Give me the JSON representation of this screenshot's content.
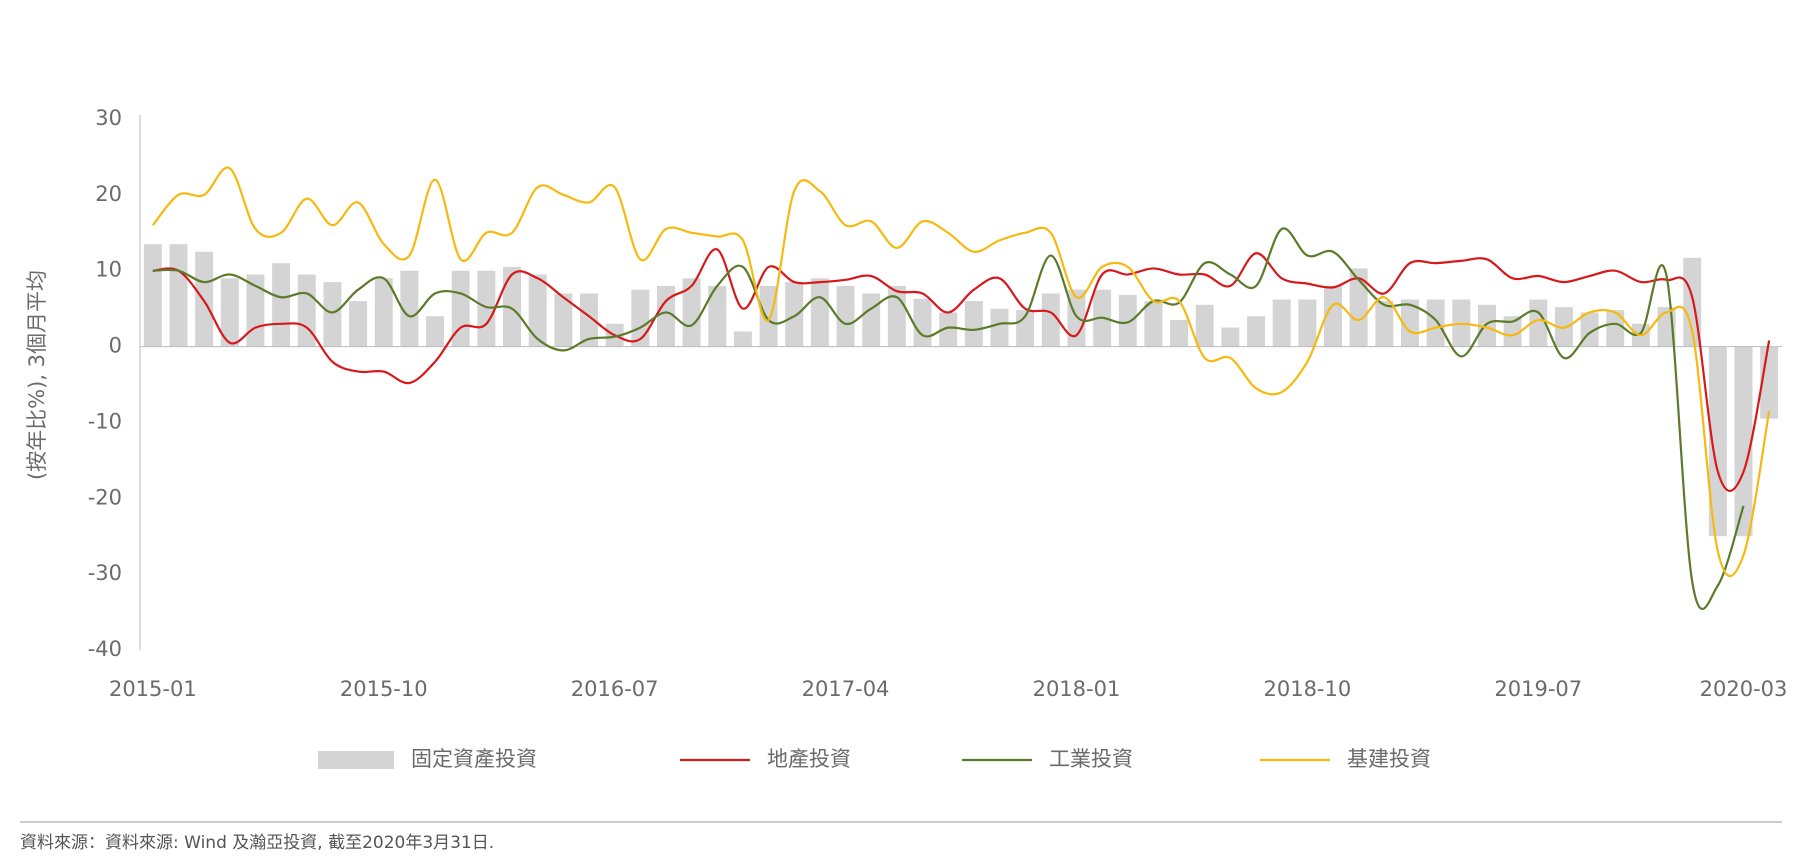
{
  "chart_data": {
    "type": "bar-line",
    "y_label": "(按年比%), 3個月平均",
    "source": "資料來源：資料來源: Wind 及瀚亞投資, 截至2020年3月31日.",
    "categories": [
      "2015-01",
      null,
      null,
      null,
      null,
      null,
      null,
      null,
      null,
      "2015-10",
      null,
      null,
      null,
      null,
      null,
      null,
      null,
      null,
      "2016-07",
      null,
      null,
      null,
      null,
      null,
      null,
      null,
      null,
      "2017-04",
      null,
      null,
      null,
      null,
      null,
      null,
      null,
      null,
      "2018-01",
      null,
      null,
      null,
      null,
      null,
      null,
      null,
      null,
      "2018-10",
      null,
      null,
      null,
      null,
      null,
      null,
      null,
      null,
      "2019-07",
      null,
      null,
      null,
      null,
      null,
      null,
      null,
      "2020-03",
      null
    ],
    "ylim": [
      -40,
      30
    ],
    "yticks": [
      -40,
      -30,
      -20,
      -10,
      0,
      10,
      20,
      30
    ],
    "series": [
      {
        "name": "固定資產投資",
        "kind": "bar",
        "color": "#d4d4d4",
        "values": [
          13.5,
          13.5,
          12.5,
          9,
          9.5,
          11,
          9.5,
          8.5,
          6,
          9,
          10,
          4,
          10,
          10,
          10.5,
          9.5,
          7,
          7,
          3,
          7.5,
          8,
          9,
          8,
          2,
          8,
          8.5,
          9,
          8,
          7,
          8,
          6.3,
          4.5,
          6,
          5,
          4.8,
          7,
          7.5,
          7.5,
          6.8,
          6,
          3.5,
          5.5,
          2.5,
          4,
          6.2,
          6.2,
          8,
          10.3,
          6,
          6.2,
          6.2,
          6.2,
          5.5,
          4,
          6.2,
          5.2,
          4.5,
          4.8,
          3,
          5.2,
          11.7,
          -25,
          -25,
          -9.5
        ]
      },
      {
        "name": "地產投資",
        "kind": "line",
        "color": "#d7191c",
        "values": [
          10,
          10,
          6,
          0.5,
          2.5,
          3,
          2.5,
          -2,
          -3.3,
          -3.3,
          -4.8,
          -2,
          2.5,
          3,
          9.5,
          9,
          6.5,
          4,
          1.5,
          1,
          6,
          8,
          12.8,
          5,
          10.5,
          8.5,
          8.5,
          8.8,
          9.3,
          7.3,
          7,
          4.5,
          7.5,
          9,
          5,
          4.5,
          1.5,
          9.5,
          9.5,
          10.3,
          9.5,
          9.5,
          8,
          12.3,
          9,
          8.3,
          7.8,
          9,
          7,
          11,
          11,
          11.3,
          11.5,
          9,
          9.3,
          8.5,
          9.3,
          10,
          8.5,
          8.8,
          6.5,
          -16.5,
          -16.5,
          0.8
        ]
      },
      {
        "name": "工業投資",
        "kind": "line",
        "color": "#5b7b2b",
        "values": [
          10,
          10,
          8.5,
          9.5,
          8,
          6.5,
          7,
          4.5,
          7.5,
          9,
          4,
          7,
          7,
          5.2,
          5,
          1,
          -0.5,
          1,
          1.3,
          2.5,
          4.5,
          2.8,
          8,
          10.5,
          3.5,
          4,
          6.5,
          3,
          5,
          6.5,
          1.5,
          2.5,
          2.2,
          3,
          4,
          12,
          4,
          3.8,
          3.2,
          6,
          5.8,
          11,
          9.5,
          8,
          15.5,
          12,
          12.5,
          8.8,
          5.5,
          5.5,
          3.5,
          -1.3,
          3,
          3.3,
          4.5,
          -1.5,
          1.8,
          3,
          1.8,
          9.3,
          -31,
          -31.5,
          -21,
          null
        ]
      },
      {
        "name": "基建投資",
        "kind": "line",
        "color": "#f6b90f",
        "values": [
          16,
          20,
          20,
          23.5,
          15.5,
          15,
          19.5,
          16,
          19,
          13.5,
          12,
          22,
          11.5,
          15,
          15,
          21,
          20,
          19,
          21,
          11.5,
          15.5,
          15,
          14.5,
          14,
          3.5,
          20.5,
          20.5,
          16,
          16.5,
          13,
          16.5,
          15,
          12.5,
          14,
          15,
          15,
          6.5,
          10.5,
          10.5,
          6,
          6,
          -1.5,
          -1.5,
          -5.5,
          -6,
          -2,
          5.5,
          3.5,
          6.5,
          2,
          2.5,
          3,
          2.5,
          1.5,
          3.5,
          2.5,
          4.5,
          4.5,
          1.5,
          4.5,
          2,
          -27,
          -27.5,
          -8.5
        ]
      }
    ]
  }
}
